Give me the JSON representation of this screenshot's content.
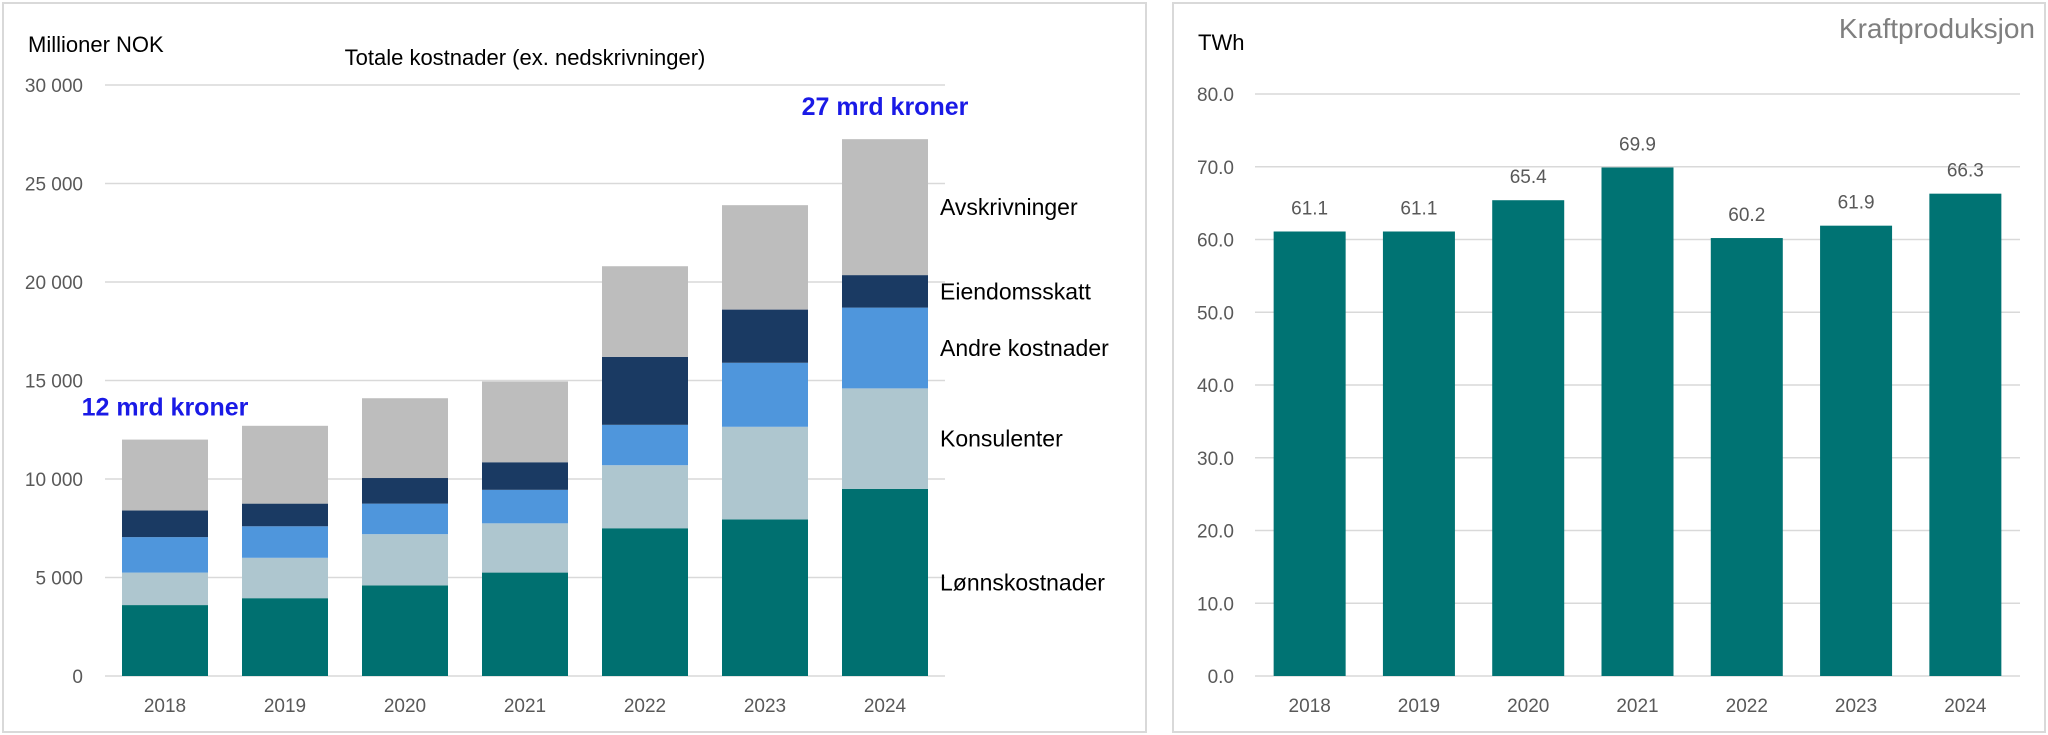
{
  "chart_data": [
    {
      "type": "bar",
      "stacked": true,
      "title": "Totale kostnader (ex. nedskrivninger)",
      "ylabel": "Millioner NOK",
      "ylim": [
        0,
        30000
      ],
      "yticks": [
        0,
        5000,
        10000,
        15000,
        20000,
        25000,
        30000
      ],
      "ytick_labels": [
        "0",
        "5 000",
        "10 000",
        "15 000",
        "20 000",
        "25 000",
        "30 000"
      ],
      "categories": [
        "2018",
        "2019",
        "2020",
        "2021",
        "2022",
        "2023",
        "2024"
      ],
      "series": [
        {
          "name": "Lønnskostnader",
          "color": "#007070",
          "values": [
            3600,
            3950,
            4600,
            5250,
            7500,
            7950,
            9500
          ]
        },
        {
          "name": "Konsulenter",
          "color": "#aec6cf",
          "values": [
            1650,
            2050,
            2600,
            2500,
            3200,
            4700,
            5100
          ]
        },
        {
          "name": "Andre kostnader",
          "color": "#4f96dc",
          "values": [
            1800,
            1600,
            1550,
            1700,
            2050,
            3250,
            4100
          ]
        },
        {
          "name": "Eiendomsskatt",
          "color": "#1a3a63",
          "values": [
            1350,
            1150,
            1300,
            1400,
            3450,
            2700,
            1650
          ]
        },
        {
          "name": "Avskrivninger",
          "color": "#bdbdbd",
          "values": [
            3600,
            3950,
            4050,
            4100,
            4600,
            5300,
            6900
          ]
        }
      ],
      "annotations": [
        {
          "text": "12 mrd kroner",
          "category": "2018",
          "color": "#1a1ae6"
        },
        {
          "text": "27 mrd kroner",
          "category": "2024",
          "color": "#1a1ae6"
        }
      ],
      "grid": true,
      "legend": "right (inline labels)"
    },
    {
      "type": "bar",
      "title": "Kraftproduksjon",
      "ylabel": "TWh",
      "ylim": [
        0,
        80
      ],
      "yticks": [
        0,
        10,
        20,
        30,
        40,
        50,
        60,
        70,
        80
      ],
      "ytick_labels": [
        "0.0",
        "10.0",
        "20.0",
        "30.0",
        "40.0",
        "50.0",
        "60.0",
        "70.0",
        "80.0"
      ],
      "categories": [
        "2018",
        "2019",
        "2020",
        "2021",
        "2022",
        "2023",
        "2024"
      ],
      "values": [
        61.1,
        61.1,
        65.4,
        69.9,
        60.2,
        61.9,
        66.3
      ],
      "value_labels": [
        "61.1",
        "61.1",
        "65.4",
        "69.9",
        "60.2",
        "61.9",
        "66.3"
      ],
      "color": "#007373",
      "grid": true
    }
  ]
}
